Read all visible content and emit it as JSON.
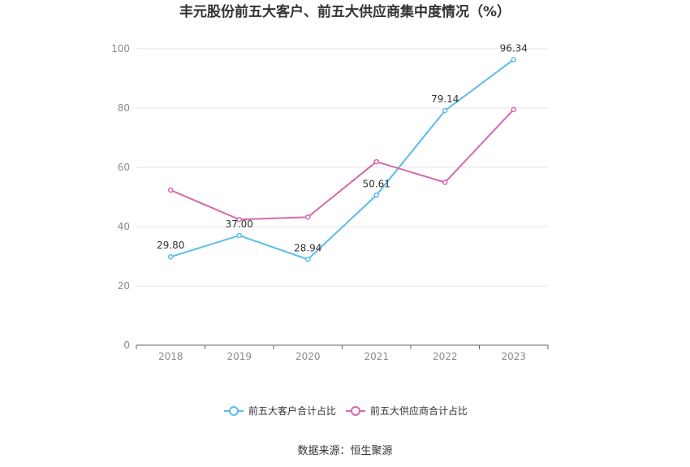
{
  "chart_data": {
    "type": "line",
    "title": "丰元股份前五大客户、前五大供应商集中度情况（%）",
    "xlabel": "",
    "ylabel": "",
    "categories": [
      "2018",
      "2019",
      "2020",
      "2021",
      "2022",
      "2023"
    ],
    "ylim": [
      0,
      100
    ],
    "yticks": [
      0,
      20,
      40,
      60,
      80,
      100
    ],
    "grid": true,
    "legend_position": "bottom",
    "series": [
      {
        "name": "前五大客户合计占比",
        "color": "#5bbde9",
        "values": [
          29.8,
          37.0,
          28.94,
          50.61,
          79.14,
          96.34
        ],
        "labels": [
          "29.80",
          "37.00",
          "28.94",
          "50.61",
          "79.14",
          "96.34"
        ]
      },
      {
        "name": "前五大供应商合计占比",
        "color": "#d36aaa",
        "values": [
          52.3,
          42.4,
          43.2,
          61.9,
          54.9,
          79.5
        ],
        "labels": []
      }
    ]
  },
  "source": "数据来源：恒生聚源"
}
